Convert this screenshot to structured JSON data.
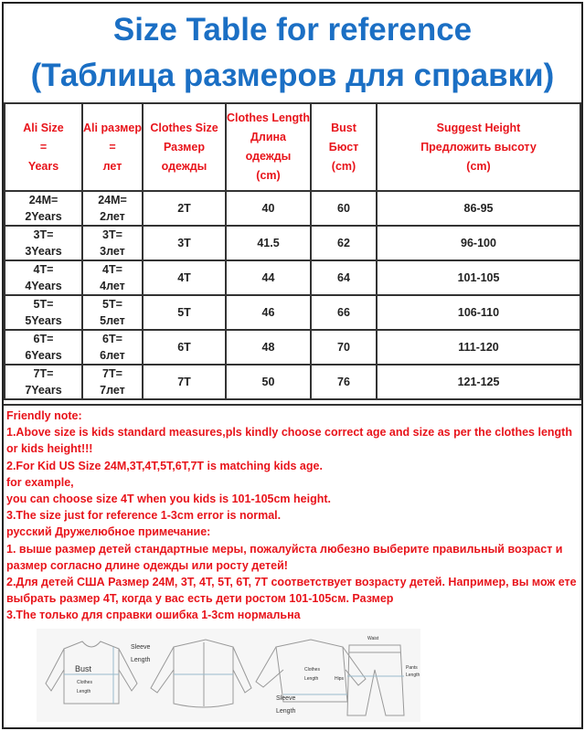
{
  "title": {
    "line1": "Size Table for reference",
    "line2": "(Таблица размеров для справки)"
  },
  "table": {
    "headers": [
      [
        "Ali Size",
        "=",
        "Years"
      ],
      [
        "Ali размер",
        "=",
        "лет"
      ],
      [
        "Clothes Size",
        "Размер одежды"
      ],
      [
        "Clothes Length",
        "Длина одежды",
        "(cm)"
      ],
      [
        "Bust",
        "Бюст",
        "(cm)"
      ],
      [
        "Suggest Height",
        "Предложить высоту",
        "(cm)"
      ]
    ],
    "rows": [
      [
        [
          "24M=",
          "2Years"
        ],
        [
          "24M=",
          "2лет"
        ],
        "2T",
        "40",
        "60",
        "86-95"
      ],
      [
        [
          "3T=",
          "3Years"
        ],
        [
          "3T=",
          "3лет"
        ],
        "3T",
        "41.5",
        "62",
        "96-100"
      ],
      [
        [
          "4T=",
          "4Years"
        ],
        [
          "4T=",
          "4лет"
        ],
        "4T",
        "44",
        "64",
        "101-105"
      ],
      [
        [
          "5T=",
          "5Years"
        ],
        [
          "5T=",
          "5лет"
        ],
        "5T",
        "46",
        "66",
        "106-110"
      ],
      [
        [
          "6T=",
          "6Years"
        ],
        [
          "6T=",
          "6лет"
        ],
        "6T",
        "48",
        "70",
        "111-120"
      ],
      [
        [
          "7T=",
          "7Years"
        ],
        [
          "7T=",
          "7лет"
        ],
        "7T",
        "50",
        "76",
        "121-125"
      ]
    ]
  },
  "notes": [
    "Friendly note:",
    "1.Above size is kids standard measures,pls kindly choose correct age and size as per the clothes length or kids height!!!",
    "2.For Kid US Size 24M,3T,4T,5T,6T,7T is matching kids age.",
    "for example,",
    "you can choose size 4T when you kids is 101-105cm height.",
    "3.The size just for reference 1-3cm error is normal.",
    "русский Дружелюбное примечание:",
    "1. выше размер детей стандартные меры, пожалуйста любезно выберите правильный возраст и размер согласно длине одежды или росту детей!",
    "2.Для детей США Размер 24M, 3T, 4T, 5T, 6T, 7T соответствует возрасту детей. Например, вы мож ете выбрать размер 4T, когда у вас есть дети ростом 101-105см. Размер",
    "3.The только для справки ошибка 1-3cm нормальна"
  ],
  "diagram": {
    "bust": "Bust",
    "clothes": "Clothes",
    "length": "Length",
    "sleeve": "Sleeve",
    "waist": "Waist",
    "hips": "Hips",
    "pants": "Pants"
  },
  "colors": {
    "title": "#1b6fc4",
    "header": "#e8141b",
    "notes": "#e8141b"
  }
}
